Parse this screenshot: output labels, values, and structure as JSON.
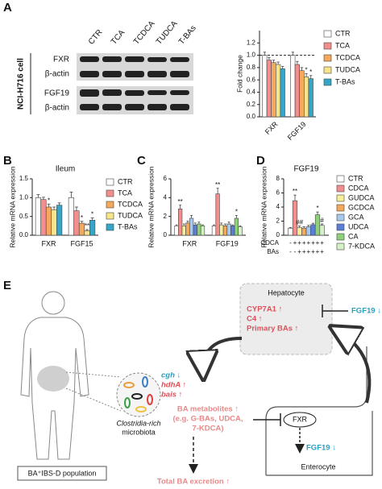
{
  "panel_labels": [
    "A",
    "B",
    "C",
    "D",
    "E"
  ],
  "blot": {
    "lanes": [
      "CTR",
      "TCA",
      "TCDCA",
      "TUDCA",
      "T-BAs"
    ],
    "rows": [
      "FXR",
      "β-actin",
      "FGF19",
      "β-actin"
    ],
    "cell_line": "NCI-H716 cell"
  },
  "chart_data": [
    {
      "type": "bar",
      "ylabel": "Fold change",
      "categories": [
        "FXR",
        "FGF19"
      ],
      "ylim": [
        0,
        1.4
      ],
      "yticks": [
        {
          "value": 0,
          "label": "0.0"
        },
        {
          "value": 0.2,
          "label": "0.2"
        },
        {
          "value": 0.4,
          "label": "0.4"
        },
        {
          "value": 0.6,
          "label": "0.6"
        },
        {
          "value": 0.8,
          "label": "0.8"
        },
        {
          "value": 1,
          "label": "1.0"
        },
        {
          "value": 1.2,
          "label": "1.2"
        }
      ],
      "refline": 1,
      "legend": "right",
      "series": [
        {
          "name": "CTR",
          "color": "#ffffff",
          "values": [
            1,
            1
          ],
          "errors": [
            0.05,
            0.05
          ],
          "significance": [
            null,
            null
          ]
        },
        {
          "name": "TCA",
          "color": "#f28e8e",
          "values": [
            0.92,
            0.85
          ],
          "errors": [
            0.04,
            0.05
          ],
          "significance": [
            null,
            null
          ]
        },
        {
          "name": "TCDCA",
          "color": "#f5a95c",
          "values": [
            0.88,
            0.75
          ],
          "errors": [
            0.04,
            0.05
          ],
          "significance": [
            null,
            null
          ]
        },
        {
          "name": "TUDCA",
          "color": "#f7e58c",
          "values": [
            0.85,
            0.65
          ],
          "errors": [
            0.04,
            0.05
          ],
          "significance": [
            null,
            "*"
          ]
        },
        {
          "name": "T-BAs",
          "color": "#36a6c8",
          "values": [
            0.78,
            0.62
          ],
          "errors": [
            0.04,
            0.05
          ],
          "significance": [
            null,
            "*"
          ]
        }
      ]
    },
    {
      "type": "bar",
      "title": "Ileum",
      "ylabel": "Relative mRNA expression",
      "categories": [
        "FXR",
        "FGF15"
      ],
      "ylim": [
        0,
        1.5
      ],
      "yticks": [
        {
          "value": 0,
          "label": "0.0"
        },
        {
          "value": 0.5,
          "label": "0.5"
        },
        {
          "value": 1,
          "label": "1.0"
        },
        {
          "value": 1.5,
          "label": "1.5"
        }
      ],
      "legend": "right",
      "series": [
        {
          "name": "CTR",
          "color": "#ffffff",
          "values": [
            1,
            1
          ],
          "errors": [
            0.08,
            0.15
          ],
          "significance": [
            null,
            null
          ]
        },
        {
          "name": "TCA",
          "color": "#f28e8e",
          "values": [
            0.95,
            0.65
          ],
          "errors": [
            0.06,
            0.1
          ],
          "significance": [
            null,
            null
          ]
        },
        {
          "name": "TCDCA",
          "color": "#f5a95c",
          "values": [
            0.75,
            0.32
          ],
          "errors": [
            0.08,
            0.05
          ],
          "significance": [
            "*",
            "*"
          ]
        },
        {
          "name": "TUDCA",
          "color": "#f7e58c",
          "values": [
            0.68,
            0.12
          ],
          "errors": [
            0.07,
            0.03
          ],
          "significance": [
            null,
            "**"
          ]
        },
        {
          "name": "T-BAs",
          "color": "#36a6c8",
          "values": [
            0.8,
            0.4
          ],
          "errors": [
            0.06,
            0.06
          ],
          "significance": [
            null,
            "*"
          ]
        }
      ]
    },
    {
      "type": "bar",
      "ylabel": "Relative mRNA expression",
      "categories": [
        "FXR",
        "FGF19"
      ],
      "ylim": [
        0,
        6
      ],
      "yticks": [
        0,
        2,
        4,
        6
      ],
      "series": [
        {
          "color": "#ffffff",
          "values": [
            1,
            1
          ],
          "errors": [
            0.1,
            0.1
          ],
          "significance": [
            null,
            null
          ]
        },
        {
          "color": "#f28e8e",
          "values": [
            2.8,
            4.4
          ],
          "errors": [
            0.4,
            0.6
          ],
          "significance": [
            "**",
            "**"
          ]
        },
        {
          "color": "#f7ef9a",
          "values": [
            1,
            1.1
          ],
          "errors": [
            0.2,
            0.2
          ],
          "significance": [
            null,
            null
          ]
        },
        {
          "color": "#f5a95c",
          "values": [
            1.3,
            1
          ],
          "errors": [
            0.2,
            0.2
          ],
          "significance": [
            null,
            null
          ]
        },
        {
          "color": "#a8c8ec",
          "values": [
            1.8,
            1.2
          ],
          "errors": [
            0.3,
            0.2
          ],
          "significance": [
            null,
            null
          ]
        },
        {
          "color": "#5b7fd6",
          "values": [
            1.1,
            1
          ],
          "errors": [
            0.2,
            0.1
          ],
          "significance": [
            null,
            null
          ]
        },
        {
          "color": "#8fd17a",
          "values": [
            1.2,
            1.8
          ],
          "errors": [
            0.2,
            0.3
          ],
          "significance": [
            null,
            "*"
          ]
        },
        {
          "color": "#d6f0c8",
          "values": [
            1,
            0.9
          ],
          "errors": [
            0.1,
            0.1
          ],
          "significance": [
            null,
            null
          ]
        }
      ]
    },
    {
      "type": "bar",
      "title": "FGF19",
      "ylabel": "Relative mRNA expression",
      "categories": [
        null
      ],
      "ylim": [
        0,
        8
      ],
      "yticks": [
        0,
        2,
        4,
        6,
        8
      ],
      "legend": "right",
      "series": [
        {
          "name": "CTR",
          "color": "#ffffff",
          "values": [
            1
          ],
          "errors": [
            0.1
          ],
          "significance": [
            null
          ]
        },
        {
          "name": "CDCA",
          "color": "#f28e8e",
          "values": [
            4.9
          ],
          "errors": [
            0.8
          ],
          "significance": [
            "**"
          ]
        },
        {
          "name": "GUDCA",
          "color": "#f7ef9a",
          "values": [
            1.1
          ],
          "errors": [
            0.2
          ],
          "significance": [
            "##"
          ]
        },
        {
          "name": "GCDCA",
          "color": "#f5a95c",
          "values": [
            1
          ],
          "errors": [
            0.2
          ],
          "significance": [
            null
          ]
        },
        {
          "name": "GCA",
          "color": "#a8c8ec",
          "values": [
            1.2
          ],
          "errors": [
            0.2
          ],
          "significance": [
            null
          ]
        },
        {
          "name": "UDCA",
          "color": "#5b7fd6",
          "values": [
            1.5
          ],
          "errors": [
            0.2
          ],
          "significance": [
            null
          ]
        },
        {
          "name": "CA",
          "color": "#8fd17a",
          "values": [
            2.9
          ],
          "errors": [
            0.4
          ],
          "significance": [
            "*"
          ]
        },
        {
          "name": "7-KDCA",
          "color": "#d6f0c8",
          "values": [
            1.4
          ],
          "errors": [
            0.2
          ],
          "significance": [
            "#"
          ]
        }
      ],
      "treatment_rows": [
        {
          "label": "CDCA",
          "signs": [
            "-",
            "+",
            "+",
            "+",
            "+",
            "+",
            "+",
            "+"
          ]
        },
        {
          "label": "BAs",
          "signs": [
            "-",
            "-",
            "+",
            "+",
            "+",
            "+",
            "+",
            "+"
          ]
        }
      ]
    }
  ],
  "diagram": {
    "hepatocyte": "Hepatocyte",
    "liver_changes": [
      "CYP7A1 ↑",
      "C4 ↑",
      "Primary BAs ↑"
    ],
    "fgf19_liver": "FGF19 ↓",
    "microbial_genes": [
      "cgh ↓",
      "hdhA ↑",
      "bais ↑"
    ],
    "microbiota": [
      "Clostridia-rich",
      "microbiota"
    ],
    "ba_metabolites": [
      "BA metabolites ↑",
      "(e.g. G-BAs, UDCA,",
      "7-KDCA)"
    ],
    "fxr": "FXR",
    "fgf19_enterocyte": "FGF19 ↓",
    "enterocyte": "Enterocyte",
    "excretion": "Total BA excretion ↑",
    "population": "BA⁺IBS-D population"
  }
}
